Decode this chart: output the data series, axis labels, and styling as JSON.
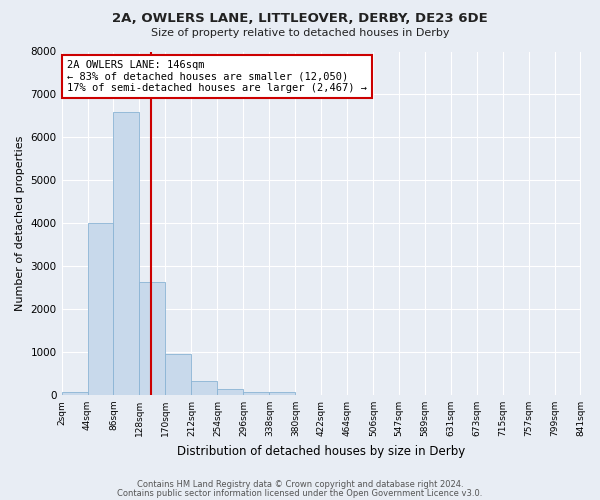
{
  "title": "2A, OWLERS LANE, LITTLEOVER, DERBY, DE23 6DE",
  "subtitle": "Size of property relative to detached houses in Derby",
  "xlabel": "Distribution of detached houses by size in Derby",
  "ylabel": "Number of detached properties",
  "bar_color": "#c8d9eb",
  "bar_edge_color": "#8ab4d4",
  "background_color": "#e8edf4",
  "grid_color": "#ffffff",
  "bin_edges": [
    2,
    44,
    86,
    128,
    170,
    212,
    254,
    296,
    338,
    380,
    422,
    464,
    506,
    547,
    589,
    631,
    673,
    715,
    757,
    799,
    841
  ],
  "bin_labels": [
    "2sqm",
    "44sqm",
    "86sqm",
    "128sqm",
    "170sqm",
    "212sqm",
    "254sqm",
    "296sqm",
    "338sqm",
    "380sqm",
    "422sqm",
    "464sqm",
    "506sqm",
    "547sqm",
    "589sqm",
    "631sqm",
    "673sqm",
    "715sqm",
    "757sqm",
    "799sqm",
    "841sqm"
  ],
  "bar_heights": [
    60,
    4000,
    6600,
    2620,
    960,
    330,
    140,
    70,
    60,
    0,
    0,
    0,
    0,
    0,
    0,
    0,
    0,
    0,
    0,
    0
  ],
  "ylim": [
    0,
    8000
  ],
  "yticks": [
    0,
    1000,
    2000,
    3000,
    4000,
    5000,
    6000,
    7000,
    8000
  ],
  "property_line_x": 146,
  "property_line_color": "#cc0000",
  "annotation_title": "2A OWLERS LANE: 146sqm",
  "annotation_line1": "← 83% of detached houses are smaller (12,050)",
  "annotation_line2": "17% of semi-detached houses are larger (2,467) →",
  "annotation_box_color": "#ffffff",
  "annotation_box_edge": "#cc0000",
  "footer1": "Contains HM Land Registry data © Crown copyright and database right 2024.",
  "footer2": "Contains public sector information licensed under the Open Government Licence v3.0."
}
